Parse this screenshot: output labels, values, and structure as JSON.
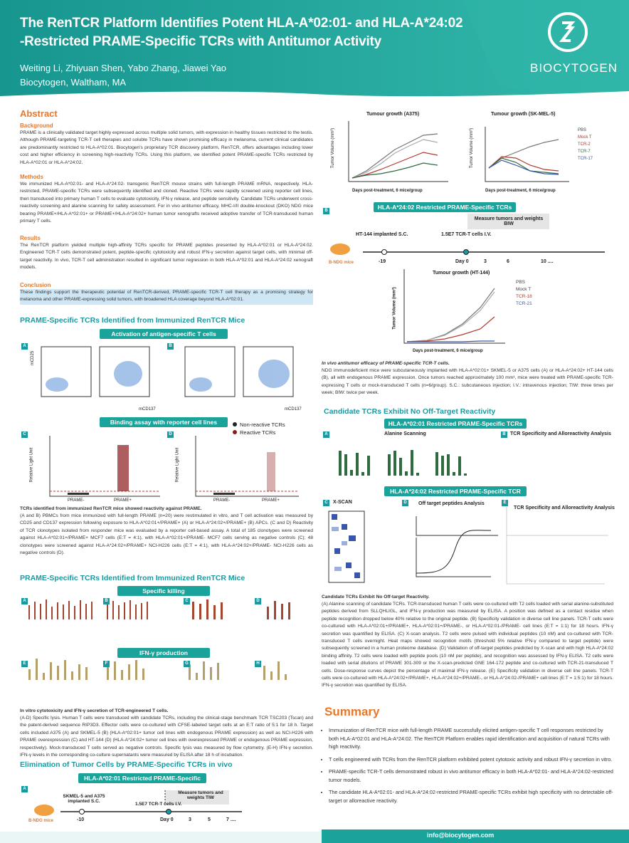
{
  "header": {
    "title_line1": "The RenTCR Platform Identifies Potent HLA-A*02:01- and HLA-A*24:02",
    "title_line2": "-Restricted PRAME-Specific TCRs with Antitumor Activity",
    "authors": "Weiting Li, Zhiyuan Shen, Yabo Zhang, Jiawei Yao",
    "affiliation": "Biocytogen, Waltham, MA",
    "logo_text": "BIOCYTOGEN"
  },
  "abstract": {
    "heading": "Abstract",
    "background_heading": "Background",
    "background": "PRAME is a clinically validated target highly expressed across multiple solid tumors, with expression in healthy tissues restricted to the testis. Although PRAME-targeting TCR-T cell therapies and soluble TCRs have shown promising efficacy in melanoma, current clinical candidates are predominantly restricted to HLA-A*02:01. Biocytogen's proprietary TCR discovery platform, RenTCR, offers advantages including lower cost and higher efficiency in screening high-reactivity TCRs. Using this platform, we identified potent PRAME-specific TCRs restricted by HLA-A*02:01 or HLA-A*24:02.",
    "methods_heading": "Methods",
    "methods": "We immunized HLA-A*02:01- and HLA-A*24:02- transgenic RenTCR mouse strains with full-length PRAME mRNA, respectively. HLA-restricted, PRAME-specific TCRs were subsequently identified and cloned. Reactive TCRs were rapidly screened using reporter cell lines, then transduced into primary human T cells to evaluate cytotoxicity, IFN-γ release, and peptide sensitivity. Candidate TCRs underwent cross-reactivity screening and alanine scanning for safety assessment. For in vivo antitumor efficacy, MHC-I/II double-knockout (DKO) NDG mice bearing PRAME+/HLA-A*02:01+ or PRAME+/HLA-A*24:02+ human tumor xenografts received adoptive transfer of TCR-transduced human primary T cells.",
    "results_heading": "Results",
    "results": "The RenTCR platform yielded multiple high-affinity TCRs specific for PRAME peptides presented by HLA-A*02:01 or HLA-A*24:02. Engineered TCR-T cells demonstrated potent, peptide-specific cytotoxicity and robust IFN-γ secretion against target cells, with minimal off-target reactivity. In vivo, TCR-T cell administration resulted in significant tumor regression in both HLA-A*02:01 and HLA-A*24:02 xenograft models.",
    "conclusion_heading": "Conclusion",
    "conclusion": "These findings support the therapeutic potential of RenTCR-derived, PRAME-specific TCR-T cell therapy as a promising strategy for melanoma and other PRAME-expressing solid tumors, with broadened HLA coverage beyond HLA-A*02:01."
  },
  "section1": {
    "heading": "PRAME-Specific TCRs Identified from Immunized RenTCR Mice",
    "banner1": "Activation of antigen-specific T cells",
    "axis_y": "mCD25",
    "axis_x": "mCD137",
    "banner2": "Binding assay with reporter cell lines",
    "legend": [
      "Non-reactive TCRs",
      "Reactive TCRs"
    ],
    "y_label": "Relative Light Unit",
    "x_categories": [
      "PRAME-",
      "PRAME+"
    ],
    "caption_title": "TCRs identified from immunized RenTCR mice showed reactivity against PRAME.",
    "caption": "(A and B) PBMCs from mice immunized with full-length PRAME (n=20) were restimulated in vitro, and T cell activation was measured by CD25 and CD137 expression following exposure to HLA-A*02:01+/PRAME+ (A) or HLA-A*24:02+/PRAME+ (B) APCs. (C and D) Reactivity of TCR clonotypes isolated from responder mice was evaluated by a reporter cell-based assay. A total of 185 clonotypes were screened against HLA-A*02:01+/PRAME+ MCF7 cells (E:T = 4:1), with HLA-A*02:01+/PRAME- MCF7 cells serving as negative controls (C); 48 clonotypes were screened against HLA-A*24:02+/PRAME+ NCI-H226 cells (E:T = 4:1), with HLA-A*24:02+/PRAME- NCI-H226 cells as negative controls (D)."
  },
  "section2": {
    "heading": "PRAME-Specific TCRs Identified from Immunized RenTCR Mice",
    "banner1": "Specific killing",
    "banner2": "IFN-γ production",
    "caption_title": "In vitro cytotoxicity and IFN-γ secretion of TCR-engineered T cells.",
    "caption": "(A-D) Specific lysis. Human T cells were transduced with candidate TCRs, including the clinical-stage benchmark TCR TSC203 (Tscan) and the patent-derived sequence RIP3D3. Effector cells were co-cultured with CFSE-labeled target cells at an E:T ratio of 5:1 for 18 h. Target cells included A375 (A) and SKMEL-5 (B) (HLA-A*02:01+ tumor cell lines with endogenous PRAME expression) as well as NCI-H226 with PRAME overexpression (C) and HT-144 (D) (HLA-A*24:02+ tumor cell lines with overexpressed PRAME or endogenous PRAME expression, respectively). Mock-transduced T cells served as negative controls. Specific lysis was measured by flow cytometry. (E-H) IFN-γ secretion. IFN-γ levels in the corresponding co-culture supernatants were measured by ELISA after 18 h of incubation."
  },
  "section3": {
    "heading": "Elimination of Tumor Cells by PRAME-Specific TCRs in vivo",
    "banner": "HLA-A*02:01 Restricted PRAME-Specific TCRs",
    "measure": "Measure tumors and weights TIW",
    "implant": "SKMEL-5 and A375 implanted S.C.",
    "inject": "1.5E7 TCR-T cells I.V.",
    "mice": "B-NDG mice",
    "days": [
      "-10",
      "Day 0",
      "3",
      "5",
      "7 ...."
    ]
  },
  "right": {
    "chart_a375": "Tumour growth (A375)",
    "chart_skmel": "Tumour growth (SK-MEL-5)",
    "x_label": "Days post-treatment, 6 mice/group",
    "y_label": "Tumor Volume (mm³)",
    "legend": [
      "PBS",
      "Mock T",
      "TCR-2",
      "TCR-7",
      "TCR-17"
    ],
    "banner_b": "HLA-A*24:02 Restricted PRAME-Specific TCRs",
    "measure": "Measure tumors and weights BIW",
    "implant": "HT-144 implanted S.C.",
    "inject": "1.5E7 TCR-T cells I.V.",
    "mice": "B-NDG mice",
    "days": [
      "-19",
      "Day 0",
      "3",
      "6",
      "10 ...."
    ],
    "chart_ht144": "Tumour growth (HT-144)",
    "legend_ht144": [
      "PBS",
      "Mock T",
      "TCR-18",
      "TCR-21"
    ],
    "caption_title": "In vivo antitumor efficacy of PRAME-specific TCR-T cells.",
    "caption": "NDG immunodeficient mice were subcutaneously implanted with HLA-A*02:01+ SKMEL-5 or A375 cells (A) or HLA-A*24:02+ HT-144 cells (B), all with endogenous PRAME expression. Once tumors reached approximately 100 mm³, mice were treated with PRAME-specific TCR-expressing T cells or mock-transduced T cells (n=6/group). S.C.: subcutaneous injection; I.V.: intravenous injection; TIW: three times per week; BIW: twice per week."
  },
  "section4": {
    "heading": "Candidate TCRs Exhibit No Off-Target Reactivity",
    "banner1": "HLA-A*02:01 Restricted PRAME-Specific TCRs",
    "alanine": "Alanine Scanning",
    "specificity": "TCR Specificity and Alloreactivity Analysis",
    "banner2": "HLA-A*24:02 Restricted PRAME-Specific TCR",
    "xscan": "X-SCAN",
    "offtarget": "Off target peptides Analysis",
    "specificity2": "TCR Specificity and Alloreactivity Analysis",
    "caption_title": "Candidate TCRs Exhibit No Off-target Reactivity.",
    "caption": "(A) Alanine scanning of candidate TCRs. TCR-transduced human T cells were co-cultured with T2 cells loaded with serial alanine-substituted peptides derived from SLLQHLIGL, and IFN-γ production was measured by ELISA. A position was defined as a contact residue when peptide recognition dropped below 40% relative to the original peptide. (B) Specificity validation in diverse cell line panels. TCR-T cells were co-cultured with HLA-A*02:01+/PRAME+, HLA-A*02:01+/PRAME-, or HLA-A*02:01-/PRAME- cell lines (E:T = 1:1) for 18 hours. IFN-γ secretion was quantified by ELISA. (C) X-scan analysis. T2 cells were pulsed with individual peptides (10 nM) and co-cultured with TCR-transduced T cells overnight. Heat maps showed recognition motifs (threshold 5% relative IFN-γ compared to target peptide) were subsequently screened in a human proteome database. (D) Validation of off-target peptides predicted by X-scan and with high HLA-A*24:02 binding affinity. T2 cells were loaded with peptide pools (10 nM per peptide), and recognition was assessed by IFN-γ ELISA. T2 cells were loaded with serial dilutions of PRAME 301-309 or the X-scan-predicted GNE 164-172 peptide and co-cultured with TCR-21-transduced T cells. Dose-response curves depict the percentage of maximal IFN-γ release. (E) Specificity validation in diverse cell line panels. TCR-T cells were co-cultured with HLA-A*24:02+/PRAME+, HLA-A*24:02+/PRAME-, or HLA-A*24:02-/PRAME+ cell lines (E:T = 1:5:1) for 18 hours. IFN-γ secretion was quantified by ELISA."
  },
  "summary": {
    "heading": "Summary",
    "bullets": [
      "Immunization of RenTCR mice with full-length PRAME successfully elicited antigen-specific T cell responses restricted by both HLA-A*02:01 and HLA-A*24:02. The RenTCR Platform enables rapid identification and acquisition of natural TCRs with high reactivity.",
      "T cells engineered with TCRs from the RenTCR platform exhibited potent cytotoxic activity and robust IFN-γ secretion in vitro.",
      "PRAME-specific TCR-T cells demonstrated robust in vivo antitumor efficacy in both HLA-A*02:01- and HLA-A*24:02-restricted tumor models.",
      "The candidate HLA-A*02:01- and HLA-A*24:02-restricted PRAME-specific TCRs exhibit high specificity with no detectable off-target or alloreactive reactivity."
    ]
  },
  "footer": {
    "email": "info@biocytogen.com"
  }
}
